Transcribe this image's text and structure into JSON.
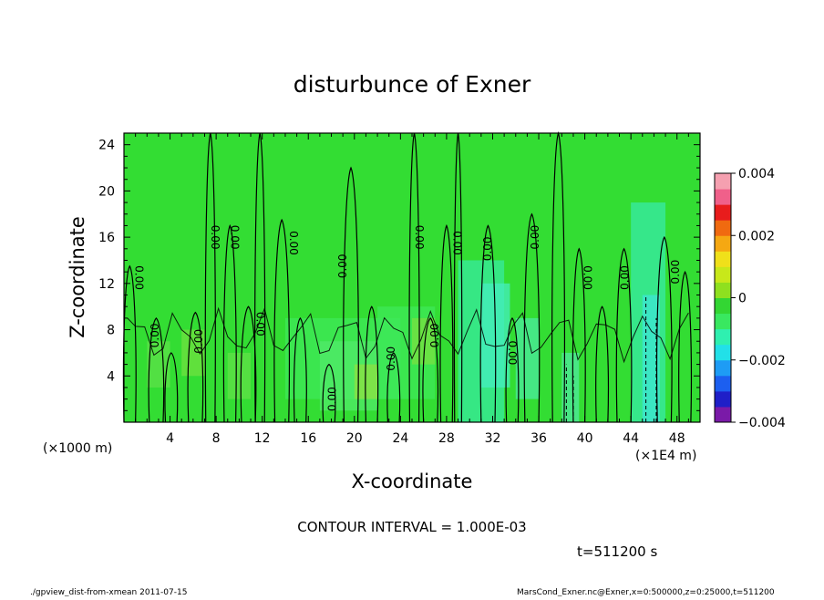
{
  "chart_data": {
    "type": "contour",
    "title": "disturbunce of Exner",
    "xlabel": "X-coordinate",
    "ylabel": "Z-coordinate",
    "x_unit_note": "(×1000 m)",
    "x_scale_note": "(×1E4 m)",
    "xlim": [
      0,
      50
    ],
    "ylim": [
      0,
      25
    ],
    "x_ticks": [
      4,
      8,
      12,
      16,
      20,
      24,
      28,
      32,
      36,
      40,
      44,
      48
    ],
    "y_ticks": [
      4,
      8,
      12,
      16,
      20,
      24
    ],
    "contour_interval_text": "CONTOUR INTERVAL = 1.000E-03",
    "time_text": "t=511200 s",
    "contour_label": "0.00",
    "colorbar": {
      "range": [
        -0.004,
        0.004
      ],
      "tick_labels": [
        "0.004",
        "0.002",
        "0",
        "−0.002",
        "−0.004"
      ],
      "tick_values": [
        0.004,
        0.002,
        0,
        -0.002,
        -0.004
      ],
      "colors": [
        "#7a1aa8",
        "#1f1fc8",
        "#1c5ff0",
        "#1e9cf5",
        "#22e0e8",
        "#2ff0b0",
        "#39e860",
        "#33d633",
        "#8fe01f",
        "#c8e81a",
        "#f0e01a",
        "#f5a812",
        "#f06a10",
        "#e81c1c",
        "#f0608a",
        "#f5a0b0"
      ]
    }
  },
  "footer": {
    "left": "./gpview_dist-from-xmean  2011-07-15",
    "right": "MarsCond_Exner.nc@Exner,x=0:500000,z=0:25000,t=511200"
  }
}
